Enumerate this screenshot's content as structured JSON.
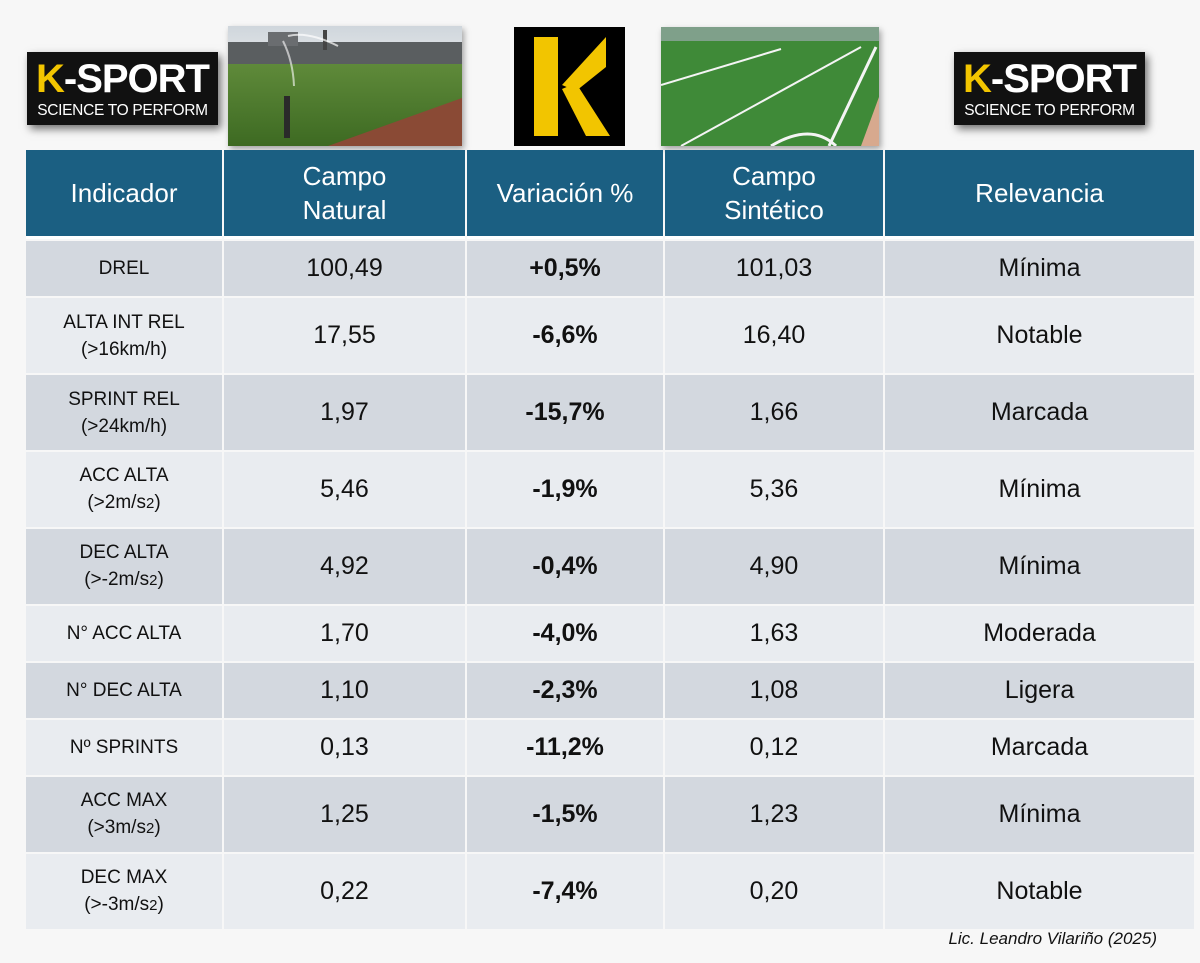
{
  "logo": {
    "brand_k": "K",
    "brand_rest": "-SPORT",
    "tagline": "SCIENCE TO PERFORM"
  },
  "colors": {
    "header_bg": "#1b5f82",
    "row_dark": "#d3d8df",
    "row_light": "#e9ecf0",
    "brand_yellow": "#f2c500"
  },
  "table": {
    "headers": {
      "indicator": "Indicador",
      "natural_l1": "Campo",
      "natural_l2": "Natural",
      "variation": "Variación %",
      "synthetic_l1": "Campo",
      "synthetic_l2": "Sintético",
      "relevance": "Relevancia"
    },
    "rows": [
      {
        "ind1": "DREL",
        "ind2": "",
        "ind_sub": "",
        "ind_end": "",
        "natural": "100,49",
        "variation": "+0,5%",
        "synthetic": "101,03",
        "relevance": "Mínima"
      },
      {
        "ind1": "ALTA INT REL",
        "ind2": "(>16km/h)",
        "ind_sub": "",
        "ind_end": "",
        "natural": "17,55",
        "variation": "-6,6%",
        "synthetic": "16,40",
        "relevance": "Notable"
      },
      {
        "ind1": "SPRINT REL",
        "ind2": "(>24km/h)",
        "ind_sub": "",
        "ind_end": "",
        "natural": "1,97",
        "variation": "-15,7%",
        "synthetic": "1,66",
        "relevance": "Marcada"
      },
      {
        "ind1": "ACC ALTA",
        "ind2": "(>2m/s",
        "ind_sub": "2",
        "ind_end": ")",
        "natural": "5,46",
        "variation": "-1,9%",
        "synthetic": "5,36",
        "relevance": "Mínima"
      },
      {
        "ind1": "DEC ALTA",
        "ind2": "(>-2m/s",
        "ind_sub": "2",
        "ind_end": ")",
        "natural": "4,92",
        "variation": "-0,4%",
        "synthetic": "4,90",
        "relevance": "Mínima"
      },
      {
        "ind1": "N° ACC ALTA",
        "ind2": "",
        "ind_sub": "",
        "ind_end": "",
        "natural": "1,70",
        "variation": "-4,0%",
        "synthetic": "1,63",
        "relevance": "Moderada"
      },
      {
        "ind1": "N° DEC ALTA",
        "ind2": "",
        "ind_sub": "",
        "ind_end": "",
        "natural": "1,10",
        "variation": "-2,3%",
        "synthetic": "1,08",
        "relevance": "Ligera"
      },
      {
        "ind1": "Nº SPRINTS",
        "ind2": "",
        "ind_sub": "",
        "ind_end": "",
        "natural": "0,13",
        "variation": "-11,2%",
        "synthetic": "0,12",
        "relevance": "Marcada"
      },
      {
        "ind1": "ACC MAX",
        "ind2": "(>3m/s",
        "ind_sub": "2",
        "ind_end": ")",
        "natural": "1,25",
        "variation": "-1,5%",
        "synthetic": "1,23",
        "relevance": "Mínima"
      },
      {
        "ind1": "DEC MAX",
        "ind2": "(>-3m/s",
        "ind_sub": "2",
        "ind_end": ")",
        "natural": "0,22",
        "variation": "-7,4%",
        "synthetic": "0,20",
        "relevance": "Notable"
      }
    ]
  },
  "credit": "Lic. Leandro Vilariño (2025)"
}
